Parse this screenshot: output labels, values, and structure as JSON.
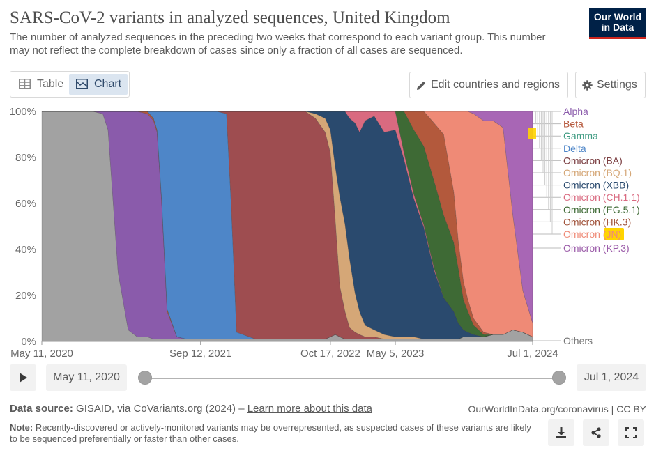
{
  "header": {
    "title": "SARS-CoV-2 variants in analyzed sequences, United Kingdom",
    "subtitle": "The number of analyzed sequences in the preceding two weeks that correspond to each variant group. This number may not reflect the complete breakdown of cases since only a fraction of all cases are sequenced.",
    "logo_line1": "Our World",
    "logo_line2": "in Data"
  },
  "tabs": {
    "table_label": "Table",
    "chart_label": "Chart",
    "active": "Chart"
  },
  "toolbar": {
    "edit_label": "Edit countries and regions",
    "settings_label": "Settings"
  },
  "timeline": {
    "start_label": "May 11, 2020",
    "end_label": "Jul 1, 2024"
  },
  "footer": {
    "source_prefix": "Data source:",
    "source_text": "GISAID, via CoVariants.org (2024) –",
    "source_link": "Learn more about this data",
    "credit": "OurWorldInData.org/coronavirus | CC BY",
    "note_prefix": "Note:",
    "note_text": "Recently-discovered or actively-monitored variants may be overrepresented, as suspected cases of these variants are likely to be sequenced preferentially or faster than other cases."
  },
  "colors": {
    "Others": "#a2a2a2",
    "Alpha": "#8a5bab",
    "Beta": "#b5573b",
    "Gamma": "#3f9b82",
    "Delta": "#4e86c8",
    "Omicron (BA)": "#9e4d50",
    "Omicron (BQ.1)": "#d5a777",
    "Omicron (XBB)": "#2a4a6e",
    "Omicron (CH.1.1)": "#d96a80",
    "Omicron (EG.5.1)": "#3e6a35",
    "Omicron (HK.3)": "#b3593c",
    "Omicron (JN)": "#ef8a76",
    "Omicron (KP.3)": "#a866b5",
    "highlight": "#ffd400"
  },
  "chart_data": {
    "type": "area",
    "stacked": true,
    "title": "SARS-CoV-2 variants in analyzed sequences, United Kingdom",
    "ylabel": "",
    "ylim": [
      0,
      100
    ],
    "y_ticks": [
      "0%",
      "20%",
      "40%",
      "60%",
      "80%",
      "100%"
    ],
    "x_tick_labels": [
      {
        "date": "2020-05-11",
        "label": "May 11, 2020"
      },
      {
        "date": "2021-09-12",
        "label": "Sep 12, 2021"
      },
      {
        "date": "2022-10-17",
        "label": "Oct 17, 2022"
      },
      {
        "date": "2023-05-05",
        "label": "May 5, 2023"
      },
      {
        "date": "2024-07-01",
        "label": "Jul 1, 2024"
      }
    ],
    "legend": [
      "Alpha",
      "Beta",
      "Gamma",
      "Delta",
      "Omicron (BA)",
      "Omicron (BQ.1)",
      "Omicron (XBB)",
      "Omicron (CH.1.1)",
      "Omicron (EG.5.1)",
      "Omicron (HK.3)",
      "Omicron (JN)",
      "Omicron (KP.3)",
      "Others"
    ],
    "legend_position": "right",
    "highlighted_series": "Omicron (JN)",
    "x": [
      "2020-05-11",
      "2020-09-15",
      "2020-10-15",
      "2020-11-15",
      "2020-12-01",
      "2021-01-01",
      "2021-02-01",
      "2021-03-01",
      "2021-04-01",
      "2021-04-20",
      "2021-05-01",
      "2021-05-15",
      "2021-06-01",
      "2021-07-01",
      "2021-08-01",
      "2021-09-01",
      "2021-10-01",
      "2021-11-01",
      "2021-12-01",
      "2021-12-15",
      "2022-01-01",
      "2022-03-01",
      "2022-06-01",
      "2022-08-01",
      "2022-09-01",
      "2022-10-01",
      "2022-10-17",
      "2022-11-01",
      "2022-11-15",
      "2022-12-01",
      "2022-12-15",
      "2023-01-01",
      "2023-01-15",
      "2023-02-01",
      "2023-03-01",
      "2023-04-01",
      "2023-05-05",
      "2023-06-01",
      "2023-07-01",
      "2023-08-01",
      "2023-09-01",
      "2023-10-01",
      "2023-11-01",
      "2023-11-15",
      "2023-12-01",
      "2023-12-15",
      "2024-01-01",
      "2024-02-01",
      "2024-03-01",
      "2024-04-01",
      "2024-05-01",
      "2024-06-01",
      "2024-07-01"
    ],
    "series": [
      {
        "name": "Others",
        "values": [
          100,
          100,
          100,
          99,
          92,
          30,
          5,
          2,
          2,
          1,
          1,
          1,
          1,
          1,
          1,
          1,
          1,
          1,
          1,
          1,
          1,
          1,
          1,
          1,
          1,
          1,
          2,
          3,
          2,
          1,
          1,
          1,
          1,
          1,
          1,
          1,
          1,
          1,
          1,
          1,
          1,
          1,
          1,
          1,
          2,
          2,
          2,
          2,
          3,
          3,
          5,
          4,
          2
        ]
      },
      {
        "name": "Alpha",
        "values": [
          0,
          0,
          0,
          1,
          8,
          70,
          95,
          98,
          97,
          95,
          90,
          60,
          12,
          1,
          0,
          0,
          0,
          0,
          0,
          0,
          0,
          0,
          0,
          0,
          0,
          0,
          0,
          0,
          0,
          0,
          0,
          0,
          0,
          0,
          0,
          0,
          0,
          0,
          0,
          0,
          0,
          0,
          0,
          0,
          0,
          0,
          0,
          0,
          0,
          0,
          0,
          0,
          0
        ]
      },
      {
        "name": "Beta",
        "values": [
          0,
          0,
          0,
          0,
          0,
          0,
          0,
          0,
          1,
          1,
          1,
          1,
          1,
          0,
          0,
          0,
          0,
          0,
          0,
          0,
          0,
          0,
          0,
          0,
          0,
          0,
          0,
          0,
          0,
          0,
          0,
          0,
          0,
          0,
          0,
          0,
          0,
          0,
          0,
          0,
          0,
          0,
          0,
          0,
          0,
          0,
          0,
          0,
          0,
          0,
          0,
          0,
          0
        ]
      },
      {
        "name": "Gamma",
        "values": [
          0,
          0,
          0,
          0,
          0,
          0,
          0,
          0,
          0,
          0,
          0,
          0,
          0,
          0,
          0,
          0,
          0,
          0,
          0,
          0,
          0,
          0,
          0,
          0,
          0,
          0,
          0,
          0,
          0,
          0,
          0,
          0,
          0,
          0,
          0,
          0,
          0,
          0,
          0,
          0,
          0,
          0,
          0,
          0,
          0,
          0,
          0,
          0,
          0,
          0,
          0,
          0,
          0
        ]
      },
      {
        "name": "Delta",
        "values": [
          0,
          0,
          0,
          0,
          0,
          0,
          0,
          0,
          0,
          3,
          8,
          38,
          86,
          98,
          99,
          99,
          99,
          99,
          98,
          60,
          3,
          0,
          0,
          0,
          0,
          0,
          0,
          0,
          0,
          0,
          0,
          0,
          0,
          0,
          0,
          0,
          0,
          0,
          0,
          0,
          0,
          0,
          0,
          0,
          0,
          0,
          0,
          0,
          0,
          0,
          0,
          0,
          0
        ]
      },
      {
        "name": "Omicron (BA)",
        "values": [
          0,
          0,
          0,
          0,
          0,
          0,
          0,
          0,
          0,
          0,
          0,
          0,
          0,
          0,
          0,
          0,
          0,
          0,
          1,
          39,
          96,
          99,
          99,
          99,
          96,
          90,
          80,
          50,
          22,
          12,
          5,
          3,
          2,
          1,
          1,
          0,
          0,
          0,
          0,
          0,
          0,
          0,
          0,
          0,
          0,
          0,
          0,
          0,
          0,
          0,
          0,
          0,
          0
        ]
      },
      {
        "name": "Omicron (BQ.1)",
        "values": [
          0,
          0,
          0,
          0,
          0,
          0,
          0,
          0,
          0,
          0,
          0,
          0,
          0,
          0,
          0,
          0,
          0,
          0,
          0,
          0,
          0,
          0,
          0,
          0,
          2,
          6,
          10,
          23,
          39,
          38,
          30,
          17,
          10,
          5,
          3,
          2,
          1,
          1,
          1,
          0,
          0,
          0,
          0,
          0,
          0,
          0,
          0,
          0,
          0,
          0,
          0,
          0,
          0
        ]
      },
      {
        "name": "Omicron (XBB)",
        "values": [
          0,
          0,
          0,
          0,
          0,
          0,
          0,
          0,
          0,
          0,
          0,
          0,
          0,
          0,
          0,
          0,
          0,
          0,
          0,
          0,
          0,
          0,
          0,
          0,
          1,
          3,
          8,
          24,
          37,
          49,
          61,
          74,
          78,
          89,
          93,
          88,
          90,
          77,
          60,
          48,
          30,
          18,
          12,
          7,
          3,
          2,
          1,
          0,
          0,
          0,
          0,
          0,
          0
        ]
      },
      {
        "name": "Omicron (CH.1.1)",
        "values": [
          0,
          0,
          0,
          0,
          0,
          0,
          0,
          0,
          0,
          0,
          0,
          0,
          0,
          0,
          0,
          0,
          0,
          0,
          0,
          0,
          0,
          0,
          0,
          0,
          0,
          0,
          0,
          0,
          0,
          0,
          3,
          5,
          9,
          4,
          2,
          9,
          8,
          3,
          2,
          1,
          1,
          0,
          0,
          0,
          0,
          0,
          0,
          0,
          0,
          0,
          0,
          0,
          0
        ]
      },
      {
        "name": "Omicron (EG.5.1)",
        "values": [
          0,
          0,
          0,
          0,
          0,
          0,
          0,
          0,
          0,
          0,
          0,
          0,
          0,
          0,
          0,
          0,
          0,
          0,
          0,
          0,
          0,
          0,
          0,
          0,
          0,
          0,
          0,
          0,
          0,
          0,
          0,
          0,
          0,
          0,
          0,
          0,
          0,
          18,
          28,
          34,
          38,
          36,
          30,
          24,
          13,
          9,
          4,
          1,
          0,
          0,
          0,
          0,
          0
        ]
      },
      {
        "name": "Omicron (HK.3)",
        "values": [
          0,
          0,
          0,
          0,
          0,
          0,
          0,
          0,
          0,
          0,
          0,
          0,
          0,
          0,
          0,
          0,
          0,
          0,
          0,
          0,
          0,
          0,
          0,
          0,
          0,
          0,
          0,
          0,
          0,
          0,
          0,
          0,
          0,
          0,
          0,
          0,
          0,
          0,
          8,
          15,
          25,
          35,
          22,
          12,
          8,
          5,
          3,
          1,
          0,
          0,
          0,
          0,
          0
        ]
      },
      {
        "name": "Omicron (JN)",
        "values": [
          0,
          0,
          0,
          0,
          0,
          0,
          0,
          0,
          0,
          0,
          0,
          0,
          0,
          0,
          0,
          0,
          0,
          0,
          0,
          0,
          0,
          0,
          0,
          0,
          0,
          0,
          0,
          0,
          0,
          0,
          0,
          0,
          0,
          0,
          0,
          0,
          0,
          0,
          0,
          0,
          5,
          10,
          35,
          57,
          74,
          82,
          89,
          92,
          93,
          90,
          50,
          18,
          6
        ]
      },
      {
        "name": "Omicron (KP.3)",
        "values": [
          0,
          0,
          0,
          0,
          0,
          0,
          0,
          0,
          0,
          0,
          0,
          0,
          0,
          0,
          0,
          0,
          0,
          0,
          0,
          0,
          0,
          0,
          0,
          0,
          0,
          0,
          0,
          0,
          0,
          0,
          0,
          0,
          0,
          0,
          0,
          0,
          0,
          0,
          0,
          0,
          0,
          0,
          0,
          0,
          0,
          0,
          1,
          4,
          4,
          7,
          45,
          78,
          92
        ]
      }
    ]
  }
}
